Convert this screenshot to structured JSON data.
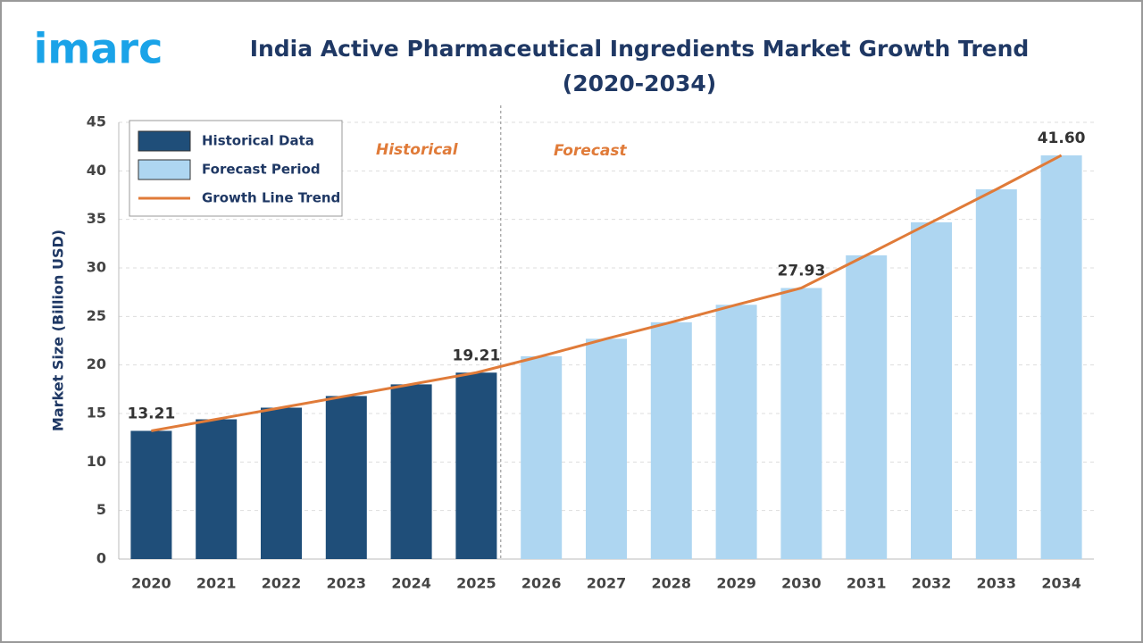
{
  "logo": "imarc",
  "chart_data": {
    "type": "bar",
    "title": [
      "India Active Pharmaceutical Ingredients Market Growth Trend",
      "(2020-2034)"
    ],
    "y_label": "Market Size (Billion USD)",
    "annotations": [
      "Historical",
      "Forecast"
    ],
    "categories": [
      "2020",
      "2021",
      "2022",
      "2023",
      "2024",
      "2025",
      "2026",
      "2027",
      "2028",
      "2029",
      "2030",
      "2031",
      "2032",
      "2033",
      "2034"
    ],
    "ylim": [
      0,
      45
    ],
    "yticks": [
      0,
      5,
      10,
      15,
      20,
      25,
      30,
      35,
      40,
      45
    ],
    "grid": true,
    "series": [
      {
        "name": "Historical Data",
        "type": "bar",
        "color": "#1f4e79",
        "values": [
          13.21,
          14.4,
          15.6,
          16.8,
          18.0,
          19.21,
          null,
          null,
          null,
          null,
          null,
          null,
          null,
          null,
          null
        ],
        "value_labels": [
          "13.21",
          null,
          null,
          null,
          null,
          "19.21",
          null,
          null,
          null,
          null,
          null,
          null,
          null,
          null,
          null
        ]
      },
      {
        "name": "Forecast Period",
        "type": "bar",
        "color": "#aed6f1",
        "values": [
          null,
          null,
          null,
          null,
          null,
          null,
          20.9,
          22.7,
          24.4,
          26.2,
          27.93,
          31.3,
          34.7,
          38.1,
          41.6
        ],
        "value_labels": [
          null,
          null,
          null,
          null,
          null,
          null,
          null,
          null,
          null,
          null,
          "27.93",
          null,
          null,
          null,
          "41.60"
        ]
      },
      {
        "name": "Growth Line Trend",
        "type": "line",
        "color": "#e07b39",
        "values": [
          13.21,
          14.4,
          15.6,
          16.8,
          18.0,
          19.21,
          20.9,
          22.7,
          24.4,
          26.2,
          27.93,
          31.3,
          34.7,
          38.1,
          41.6
        ]
      }
    ]
  }
}
